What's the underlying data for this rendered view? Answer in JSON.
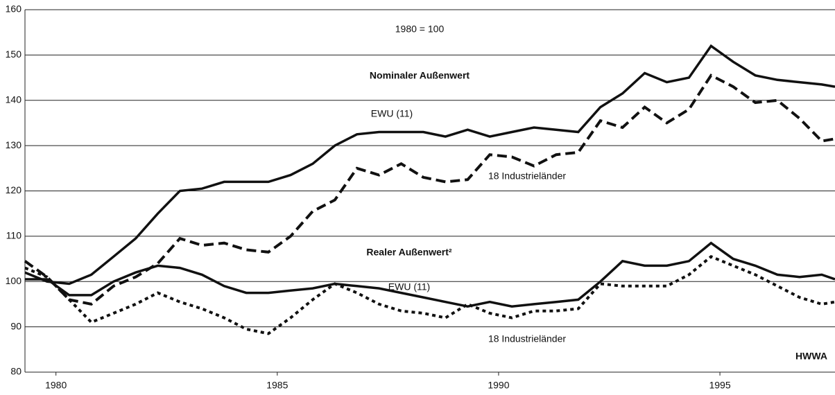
{
  "chart_data": {
    "type": "line",
    "annotations": [
      "1980 = 100",
      "Nominaler Außenwert",
      "Realer Außenwert²",
      "HWWA"
    ],
    "x": [
      1979.3,
      1979.8,
      1980.3,
      1980.8,
      1981.3,
      1981.8,
      1982.3,
      1982.8,
      1983.3,
      1983.8,
      1984.3,
      1984.8,
      1985.3,
      1985.8,
      1986.3,
      1986.8,
      1987.3,
      1987.8,
      1988.3,
      1988.8,
      1989.3,
      1989.8,
      1990.3,
      1990.8,
      1991.3,
      1991.8,
      1992.3,
      1992.8,
      1993.3,
      1993.8,
      1994.3,
      1994.8,
      1995.3,
      1995.8,
      1996.3,
      1996.8,
      1997.3,
      1997.6
    ],
    "series": [
      {
        "name": "EWU (11)",
        "color": "#111111",
        "dash": "solid",
        "values": [
          102,
          100,
          99.5,
          101.5,
          105.5,
          109.5,
          115,
          120,
          120.5,
          122,
          122,
          122,
          123.5,
          126,
          130,
          132.5,
          133,
          133,
          133,
          132,
          133.5,
          132,
          133,
          134,
          133.5,
          133,
          138.5,
          141.5,
          146,
          144,
          145,
          152,
          148.5,
          145.5,
          144.5,
          144,
          143.5,
          143
        ]
      },
      {
        "name": "18 Industrieländer",
        "color": "#111111",
        "dash": "dashed",
        "values": [
          104.5,
          101,
          96,
          95,
          99,
          101,
          104,
          109.5,
          108,
          108.5,
          107,
          106.5,
          110,
          115.5,
          118,
          125,
          123.5,
          126,
          123,
          122,
          122.5,
          128,
          127.5,
          125.5,
          128,
          128.5,
          135.5,
          134,
          138.5,
          135,
          138,
          145.5,
          143,
          139.5,
          140,
          136,
          131,
          131.5
        ]
      },
      {
        "name": "EWU (11)",
        "color": "#111111",
        "dash": "solid",
        "values": [
          100.5,
          100.5,
          97,
          97,
          100,
          102,
          103.5,
          103,
          101.5,
          99,
          97.5,
          97.5,
          98,
          98.5,
          99.5,
          99,
          98.5,
          97.5,
          96.5,
          95.5,
          94.5,
          95.5,
          94.5,
          95,
          95.5,
          96,
          100,
          104.5,
          103.5,
          103.5,
          104.5,
          108.5,
          105,
          103.5,
          101.5,
          101,
          101.5,
          100.5
        ]
      },
      {
        "name": "18 Industrieländer",
        "color": "#111111",
        "dash": "dotted",
        "values": [
          103,
          101,
          96,
          91,
          93,
          95,
          97.5,
          95.5,
          94,
          92,
          89.5,
          88.5,
          92,
          96,
          99.5,
          97.5,
          95,
          93.5,
          93,
          92,
          95,
          93,
          92,
          93.5,
          93.5,
          94,
          99.5,
          99,
          99,
          99,
          101.5,
          105.5,
          103.5,
          101.5,
          99,
          96.5,
          95,
          95.5
        ]
      }
    ],
    "xlim": [
      1979.3,
      1997.6
    ],
    "xticks": [
      1980,
      1985,
      1990,
      1995
    ],
    "ylim": [
      80,
      160
    ],
    "yticks": [
      80,
      90,
      100,
      110,
      120,
      130,
      140,
      150,
      160
    ],
    "grid": true
  }
}
